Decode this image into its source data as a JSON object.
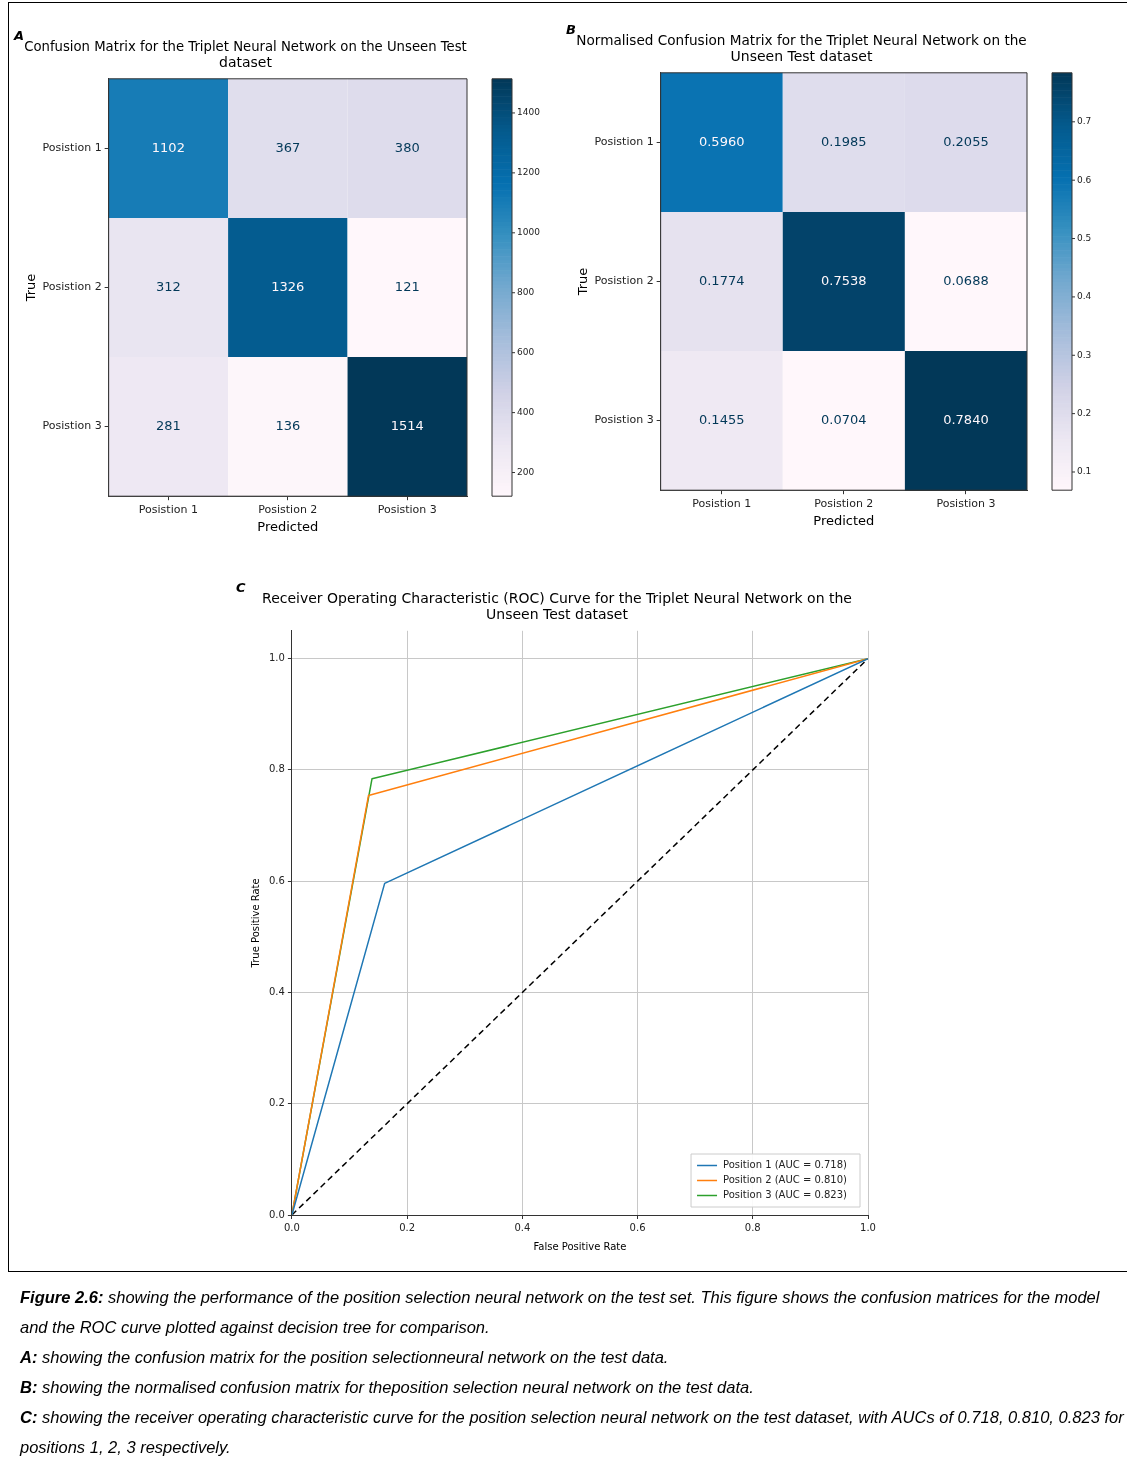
{
  "chart_data": [
    {
      "type": "heatmap",
      "title": "Confusion Matrix for the Triplet Neural Network on the Unseen Test dataset",
      "xlabel": "Predicted",
      "ylabel": "True",
      "categories": [
        "Posistion 1",
        "Posistion 2",
        "Posistion 3"
      ],
      "y_categories": [
        "Posistion 1",
        "Posistion 2",
        "Posistion 3"
      ],
      "cells": [
        [
          1102,
          367,
          380
        ],
        [
          312,
          1326,
          121
        ],
        [
          281,
          136,
          1514
        ]
      ],
      "data_labels": true,
      "clim": [
        121,
        1514
      ],
      "cticks": [
        200,
        400,
        600,
        800,
        1000,
        1200,
        1400
      ],
      "annotations": [
        "A"
      ]
    },
    {
      "type": "heatmap",
      "title": "Normalised Confusion Matrix for the Triplet Neural Network on the Unseen Test dataset",
      "xlabel": "Predicted",
      "ylabel": "True",
      "categories": [
        "Posistion 1",
        "Posistion 2",
        "Posistion 3"
      ],
      "y_categories": [
        "Posistion 1",
        "Posistion 2",
        "Posistion 3"
      ],
      "cells": [
        [
          0.596,
          0.1985,
          0.2055
        ],
        [
          0.1774,
          0.7538,
          0.0688
        ],
        [
          0.1455,
          0.0704,
          0.784
        ]
      ],
      "cell_labels": [
        [
          "0.5960",
          "0.1985",
          "0.2055"
        ],
        [
          "0.1774",
          "0.7538",
          "0.0688"
        ],
        [
          "0.1455",
          "0.0704",
          "0.7840"
        ]
      ],
      "clim": [
        0.0688,
        0.784
      ],
      "cticks": [
        0.1,
        0.2,
        0.3,
        0.4,
        0.5,
        0.6,
        0.7
      ],
      "annotations": [
        "B"
      ]
    },
    {
      "type": "line",
      "title": "Receiver Operating Characteristic (ROC) Curve for the Triplet Neural Network on the Unseen Test dataset",
      "xlabel": "False Positive Rate",
      "ylabel": "True Positive Rate",
      "xlim": [
        0,
        1
      ],
      "ylim": [
        0,
        1.05
      ],
      "xticks": [
        {
          "value": 0,
          "label": "0.0"
        },
        {
          "value": 0.2,
          "label": "0.2"
        },
        {
          "value": 0.4,
          "label": "0.4"
        },
        {
          "value": 0.6,
          "label": "0.6"
        },
        {
          "value": 0.8,
          "label": "0.8"
        },
        {
          "value": 1,
          "label": "1.0"
        }
      ],
      "yticks": [
        {
          "value": 0,
          "label": "0.0"
        },
        0.2,
        0.4,
        0.6,
        0.8,
        {
          "value": 1,
          "label": "1.0"
        }
      ],
      "series": [
        {
          "name": "Position 1 (AUC = 0.718)",
          "color": "#1f77b4",
          "x": [
            0,
            0.161,
            1
          ],
          "values": [
            0,
            0.596,
            1
          ]
        },
        {
          "name": "Position 2 (AUC = 0.810)",
          "color": "#ff7f0e",
          "x": [
            0,
            0.133,
            1
          ],
          "values": [
            0,
            0.754,
            1
          ]
        },
        {
          "name": "Position 3 (AUC = 0.823)",
          "color": "#2ca02c",
          "x": [
            0,
            0.139,
            1
          ],
          "values": [
            0,
            0.784,
            1
          ]
        },
        {
          "color": "#000000",
          "line_style": "dashed",
          "x": [
            0,
            1
          ],
          "values": [
            0,
            1
          ]
        }
      ],
      "grid": true,
      "legend": "bottom right",
      "annotations": [
        "C",
        "Figure 2.6: showing the performance of the position selection neural network on the test set. This figure shows the confusion matrices for the model and the ROC curve plotted against decision tree for comparison.",
        "A: showing the confusion matrix for the position selectionneural network on the test data.",
        "B: showing the normalised confusion matrix for theposition selection neural network on the test data.",
        "C: showing the receiver operating characteristic curve for the position selection neural network on the test dataset, with AUCs of 0.718, 0.810, 0.823 for positions 1, 2, 3 respectively."
      ]
    }
  ]
}
